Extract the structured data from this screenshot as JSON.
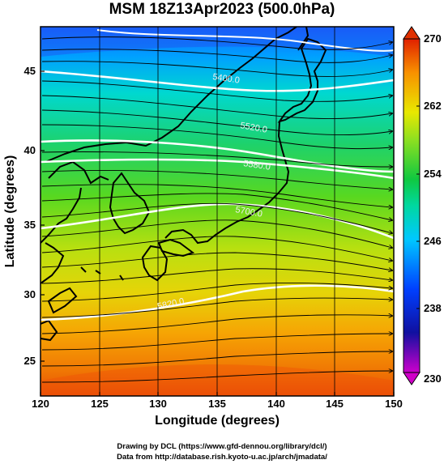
{
  "title": "MSM 18Z13Apr2023 (500.0hPa)",
  "x_axis": {
    "label": "Longitude (degrees)",
    "ticks": [
      "120",
      "125",
      "130",
      "135",
      "140",
      "145",
      "150"
    ],
    "range": [
      120,
      150
    ]
  },
  "y_axis": {
    "label": "Latitude  (degrees)",
    "ticks": [
      "25",
      "30",
      "35",
      "40",
      "45"
    ],
    "range": [
      22.5,
      47.5
    ]
  },
  "colorbar": {
    "ticks": [
      "230",
      "238",
      "246",
      "254",
      "262",
      "270"
    ],
    "range": [
      230,
      270
    ]
  },
  "contours": [
    {
      "label": "5400.0",
      "lat_at_edges": [
        45.0,
        43.5
      ]
    },
    {
      "label": "5520.0",
      "lat_at_edges": [
        41.0,
        39.5
      ]
    },
    {
      "label": "5580.0",
      "lat_at_edges": [
        39.5,
        38.0
      ]
    },
    {
      "label": "5700.0",
      "lat_at_edges": [
        35.5,
        34.0
      ]
    },
    {
      "label": "5820.0",
      "lat_at_edges": [
        27.5,
        30.5
      ]
    }
  ],
  "credits": {
    "line1": "Drawing by DCL (https://www.gfd-dennou.org/library/dcl/)",
    "line2": "Data from http://database.rish.kyoto-u.ac.jp/arch/jmadata/"
  }
}
